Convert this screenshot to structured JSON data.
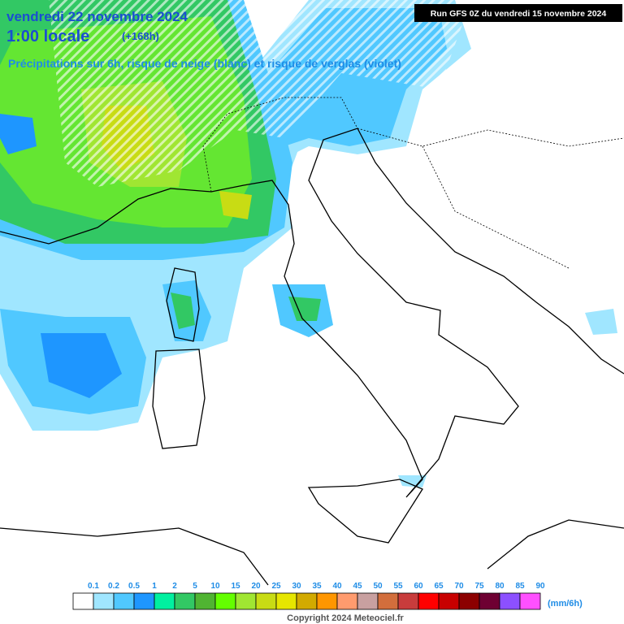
{
  "header": {
    "date": "vendredi 22 novembre 2024",
    "time": "1:00 locale",
    "lead": "(+168h)",
    "subtitle": "Précipitations sur 6h, risque de neige (blanc) et risque de verglas (violet)",
    "run": "Run GFS 0Z du vendredi 15 novembre 2024"
  },
  "legend": {
    "labels": [
      "0.1",
      "0.2",
      "0.5",
      "1",
      "2",
      "5",
      "10",
      "15",
      "20",
      "25",
      "30",
      "35",
      "40",
      "45",
      "50",
      "55",
      "60",
      "65",
      "70",
      "75",
      "80",
      "85",
      "90"
    ],
    "colors": [
      "#ffffff",
      "#a0e6ff",
      "#50c8ff",
      "#1e96ff",
      "#00f0a0",
      "#32c864",
      "#50b432",
      "#64ff00",
      "#a0e632",
      "#c8dc14",
      "#e6e600",
      "#d2aa00",
      "#ff9600",
      "#ff9b6e",
      "#c8a0a0",
      "#d26e3c",
      "#c83c3c",
      "#ff0000",
      "#c80000",
      "#8c0000",
      "#6e0032",
      "#8c50ff",
      "#ff50ff"
    ],
    "unit": "(mm/6h)"
  },
  "footer": {
    "copyright": "Copyright 2024 Meteociel.fr"
  }
}
